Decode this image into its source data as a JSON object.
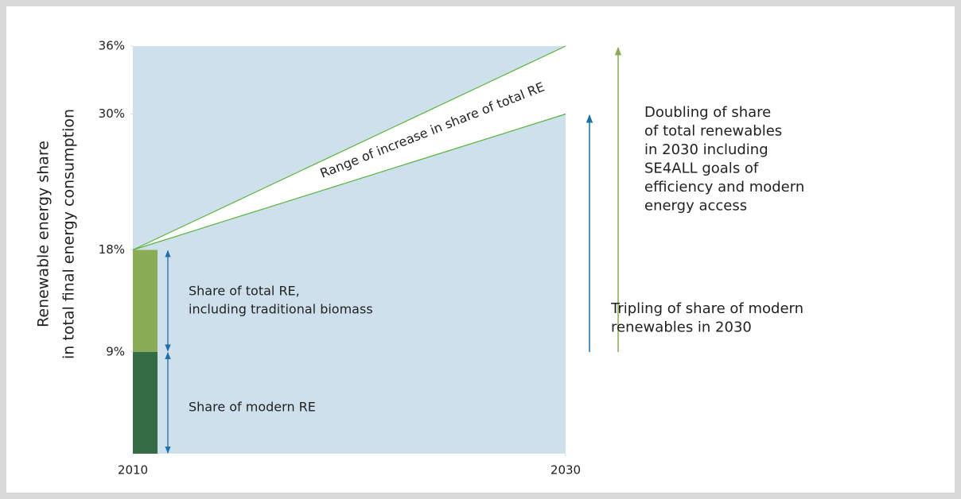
{
  "chart_data": {
    "type": "range",
    "ylabel": [
      "Renewable energy share",
      "in total final energy consumption"
    ],
    "x": [
      2010,
      2030
    ],
    "xlim": [
      2010,
      2030
    ],
    "xticks": [
      2010,
      2030
    ],
    "ylim": [
      0,
      36
    ],
    "yticks": [
      {
        "value": 9,
        "label": "9%"
      },
      {
        "value": 18,
        "label": "18%"
      },
      {
        "value": 30,
        "label": "30%"
      },
      {
        "value": 36,
        "label": "36%"
      }
    ],
    "series": [
      {
        "color": "#5ab43c",
        "values": [
          18,
          36
        ]
      },
      {
        "color": "#5ab43c",
        "values": [
          18,
          30
        ]
      }
    ],
    "range_label": "Range of increase in share of total RE",
    "bars": [
      {
        "label": [
          "Share of modern RE"
        ],
        "value": 9,
        "color": "#356b45"
      },
      {
        "label": [
          "Share of total RE,",
          "including traditional biomass"
        ],
        "value": 9,
        "color": "#8aac55"
      }
    ],
    "annotations": [
      {
        "text": [
          "Doubling of share",
          "of total renewables",
          "in 2030 including",
          "SE4ALL goals of",
          "efficiency and modern",
          "energy access"
        ],
        "color": "#8aac55"
      },
      {
        "text": [
          "Tripling of share of modern",
          "renewables in 2030"
        ],
        "color": "#1f6fa8"
      }
    ]
  }
}
